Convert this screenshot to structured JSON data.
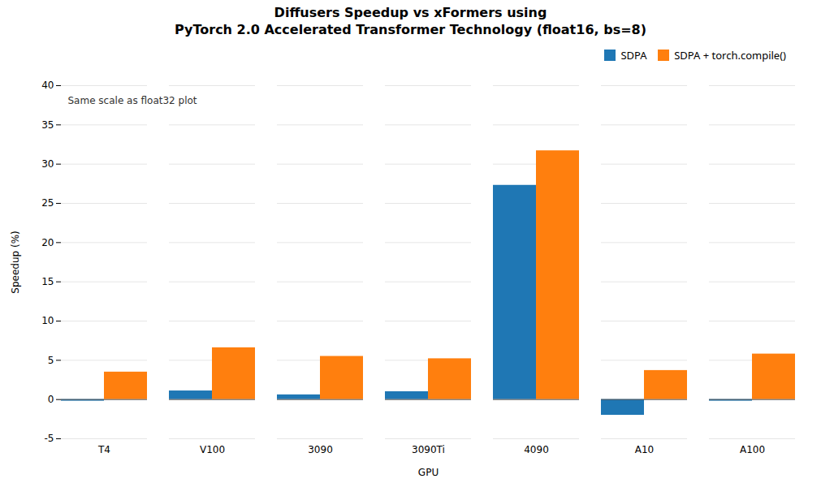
{
  "chart_data": {
    "type": "bar",
    "title": "Diffusers Speedup vs xFormers using\nPyTorch 2.0 Accelerated Transformer Technology (float16, bs=8)",
    "xlabel": "GPU",
    "ylabel": "Speedup (%)",
    "categories": [
      "T4",
      "V100",
      "3090",
      "3090Ti",
      "4090",
      "A10",
      "A100"
    ],
    "series": [
      {
        "name": "SDPA",
        "color": "#1f77b4",
        "values": [
          -0.2,
          1.1,
          0.6,
          1.0,
          27.3,
          -2.0,
          -0.2
        ]
      },
      {
        "name": "SDPA + torch.compile()",
        "color": "#ff7f0e",
        "values": [
          3.5,
          6.6,
          5.5,
          5.2,
          31.7,
          3.7,
          5.8
        ]
      }
    ],
    "ylim": [
      -5,
      40
    ],
    "yticks": [
      -5,
      0,
      5,
      10,
      15,
      20,
      25,
      30,
      35,
      40
    ],
    "grid": true,
    "legend": "upper right",
    "annotation": "Same scale as float32 plot"
  }
}
